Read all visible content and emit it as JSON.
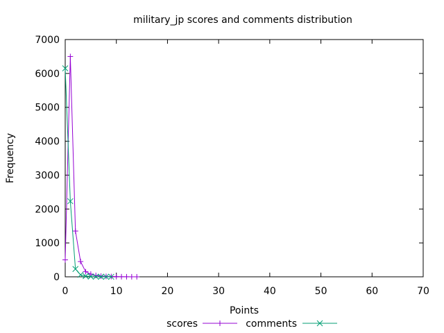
{
  "chart_data": {
    "type": "line",
    "title": "military_jp scores and comments distribution",
    "xlabel": "Points",
    "ylabel": "Frequency",
    "xlim": [
      0,
      70
    ],
    "ylim": [
      0,
      7000
    ],
    "xticks": [
      0,
      10,
      20,
      30,
      40,
      50,
      60,
      70
    ],
    "yticks": [
      0,
      1000,
      2000,
      3000,
      4000,
      5000,
      6000,
      7000
    ],
    "grid": false,
    "legend_position": "bottom",
    "series": [
      {
        "name": "scores",
        "color": "#9400d3",
        "marker": "plus",
        "x": [
          0,
          1,
          2,
          3,
          4,
          5,
          6,
          7,
          8,
          9,
          10,
          11,
          12,
          13,
          14
        ],
        "y": [
          500,
          6500,
          1350,
          450,
          150,
          80,
          40,
          20,
          12,
          8,
          5,
          3,
          2,
          1,
          1
        ]
      },
      {
        "name": "comments",
        "color": "#009e73",
        "marker": "cross",
        "x": [
          0,
          1,
          2,
          3,
          4,
          5,
          6,
          7,
          8,
          9
        ],
        "y": [
          6150,
          2230,
          230,
          60,
          20,
          8,
          4,
          2,
          1,
          1
        ]
      }
    ]
  }
}
